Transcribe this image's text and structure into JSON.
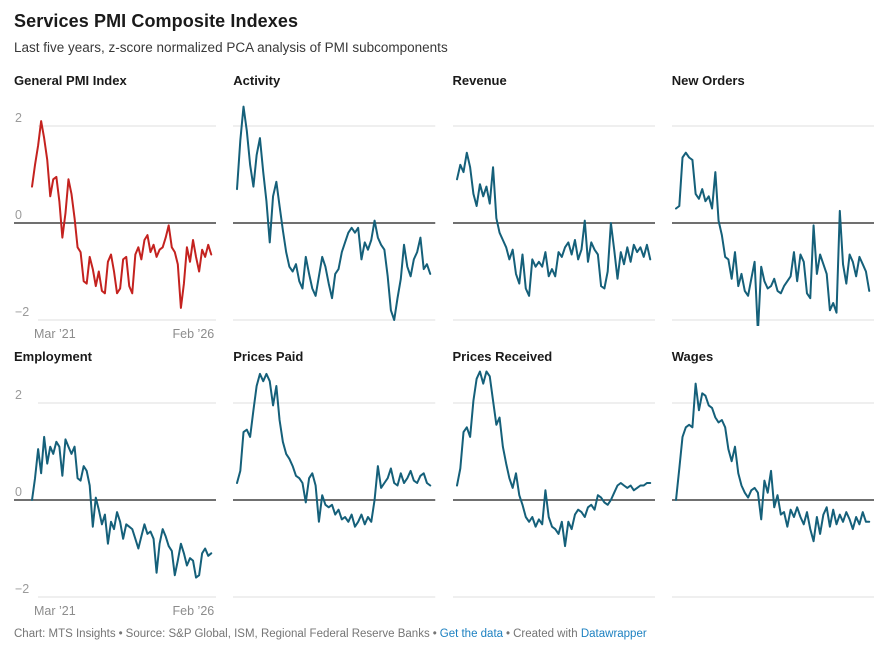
{
  "header": {
    "title": "Services PMI Composite Indexes",
    "subtitle": "Last five years, z-score normalized PCA analysis of PMI subcomponents"
  },
  "footer": {
    "chart_credit": "Chart: MTS Insights",
    "separator": "•",
    "source": "Source: S&P Global, ISM, Regional Federal Reserve Banks",
    "link_get_data": "Get the data",
    "created_with": "Created with",
    "link_datawrapper": "Datawrapper"
  },
  "colors": {
    "red_series": "#c4221f",
    "teal_series": "#15607a",
    "gridline": "#dfdfdf",
    "zero_line": "#1a1a1a",
    "tick_label": "#9b9b9b"
  },
  "chart_data": {
    "type": "line",
    "title": "Services PMI Composite Indexes",
    "subtitle": "Last five years, z-score normalized PCA analysis of PMI subcomponents",
    "x_unit": "month",
    "x_start": "Mar ’21",
    "x_end": "Feb ’26",
    "x_tick_labels": [
      "Mar ’21",
      "Feb ’26"
    ],
    "y_ticks": [
      2,
      0,
      -2
    ],
    "y_tick_labels": [
      "2",
      "0",
      "−2"
    ],
    "ylim": [
      -2.4,
      2.7
    ],
    "grid": "horizontal-only",
    "legend": "none",
    "panels": [
      {
        "title": "General PMI Index",
        "color": "#c4221f",
        "values": [
          0.75,
          1.2,
          1.6,
          2.1,
          1.75,
          1.3,
          0.55,
          0.9,
          0.95,
          0.45,
          -0.3,
          0.2,
          0.9,
          0.6,
          0.1,
          -0.5,
          -0.6,
          -1.2,
          -1.25,
          -0.7,
          -0.95,
          -1.3,
          -1.0,
          -1.4,
          -1.45,
          -0.8,
          -0.65,
          -1.0,
          -1.45,
          -1.35,
          -0.75,
          -0.7,
          -1.3,
          -1.45,
          -0.65,
          -0.5,
          -0.75,
          -0.35,
          -0.25,
          -0.6,
          -0.45,
          -0.7,
          -0.55,
          -0.5,
          -0.3,
          -0.05,
          -0.5,
          -0.6,
          -0.85,
          -1.75,
          -1.25,
          -0.5,
          -0.8,
          -0.35,
          -0.7,
          -1.0,
          -0.55,
          -0.7,
          -0.45,
          -0.65
        ]
      },
      {
        "title": "Activity",
        "color": "#15607a",
        "values": [
          0.7,
          1.7,
          2.4,
          1.9,
          1.2,
          0.75,
          1.4,
          1.75,
          1.05,
          0.45,
          -0.4,
          0.55,
          0.85,
          0.35,
          -0.15,
          -0.6,
          -0.9,
          -1.0,
          -0.85,
          -1.2,
          -1.35,
          -0.7,
          -1.05,
          -1.35,
          -1.5,
          -1.1,
          -0.7,
          -0.9,
          -1.25,
          -1.55,
          -1.05,
          -0.95,
          -0.6,
          -0.4,
          -0.2,
          -0.1,
          -0.2,
          -0.1,
          -0.75,
          -0.4,
          -0.55,
          -0.35,
          0.05,
          -0.3,
          -0.45,
          -0.55,
          -1.1,
          -1.8,
          -2.0,
          -1.55,
          -1.15,
          -0.45,
          -0.9,
          -1.1,
          -0.75,
          -0.6,
          -0.3,
          -0.95,
          -0.85,
          -1.05
        ]
      },
      {
        "title": "Revenue",
        "color": "#15607a",
        "values": [
          0.9,
          1.2,
          1.05,
          1.45,
          1.15,
          0.6,
          0.35,
          0.8,
          0.55,
          0.75,
          0.4,
          1.15,
          0.1,
          -0.2,
          -0.35,
          -0.5,
          -0.75,
          -0.55,
          -1.05,
          -1.25,
          -0.65,
          -1.35,
          -1.5,
          -0.75,
          -0.9,
          -0.8,
          -0.9,
          -0.6,
          -1.1,
          -0.95,
          -1.1,
          -0.6,
          -0.7,
          -0.5,
          -0.4,
          -0.65,
          -0.35,
          -0.75,
          -0.55,
          0.05,
          -0.8,
          -0.4,
          -0.55,
          -0.65,
          -1.3,
          -1.35,
          -1.0,
          0.0,
          -0.55,
          -1.15,
          -0.6,
          -0.85,
          -0.5,
          -0.8,
          -0.45,
          -0.6,
          -0.5,
          -0.7,
          -0.45,
          -0.75
        ]
      },
      {
        "title": "New Orders",
        "color": "#15607a",
        "values": [
          0.3,
          0.35,
          1.35,
          1.45,
          1.35,
          1.3,
          0.6,
          0.5,
          0.7,
          0.45,
          0.55,
          0.3,
          1.05,
          0.05,
          -0.25,
          -0.7,
          -0.75,
          -1.15,
          -0.6,
          -1.3,
          -1.05,
          -1.4,
          -1.5,
          -1.15,
          -0.8,
          -2.25,
          -0.9,
          -1.2,
          -1.35,
          -1.3,
          -1.15,
          -1.4,
          -1.45,
          -1.3,
          -1.2,
          -1.1,
          -0.6,
          -1.2,
          -0.65,
          -0.8,
          -1.45,
          -1.55,
          -0.05,
          -1.05,
          -0.65,
          -0.85,
          -1.05,
          -1.8,
          -1.65,
          -1.85,
          0.25,
          -0.85,
          -1.25,
          -0.65,
          -0.8,
          -1.1,
          -0.7,
          -0.85,
          -1.0,
          -1.4
        ]
      },
      {
        "title": "Employment",
        "color": "#15607a",
        "values": [
          0.0,
          0.45,
          1.05,
          0.55,
          1.3,
          0.75,
          1.1,
          0.95,
          1.2,
          1.1,
          0.5,
          1.25,
          1.1,
          0.95,
          1.1,
          0.45,
          0.4,
          0.7,
          0.6,
          0.3,
          -0.55,
          0.05,
          -0.2,
          -0.5,
          -0.3,
          -0.9,
          -0.45,
          -0.6,
          -0.25,
          -0.45,
          -0.8,
          -0.5,
          -0.55,
          -0.6,
          -0.8,
          -1.0,
          -0.75,
          -0.5,
          -0.7,
          -0.65,
          -0.8,
          -1.5,
          -0.9,
          -0.6,
          -0.75,
          -0.95,
          -1.05,
          -1.55,
          -1.25,
          -0.9,
          -1.1,
          -1.35,
          -1.2,
          -1.25,
          -1.6,
          -1.55,
          -1.1,
          -1.0,
          -1.15,
          -1.1
        ]
      },
      {
        "title": "Prices Paid",
        "color": "#15607a",
        "values": [
          0.35,
          0.6,
          1.4,
          1.45,
          1.3,
          1.85,
          2.35,
          2.6,
          2.45,
          2.6,
          2.45,
          1.95,
          2.35,
          1.65,
          1.2,
          0.95,
          0.85,
          0.7,
          0.5,
          0.45,
          0.35,
          -0.05,
          0.45,
          0.55,
          0.3,
          -0.45,
          0.1,
          -0.1,
          -0.15,
          -0.1,
          -0.3,
          -0.2,
          -0.4,
          -0.35,
          -0.45,
          -0.3,
          -0.55,
          -0.45,
          -0.3,
          -0.5,
          -0.35,
          -0.45,
          0.0,
          0.7,
          0.25,
          0.35,
          0.45,
          0.65,
          0.35,
          0.3,
          0.55,
          0.35,
          0.45,
          0.6,
          0.4,
          0.35,
          0.5,
          0.55,
          0.35,
          0.3
        ]
      },
      {
        "title": "Prices Received",
        "color": "#15607a",
        "values": [
          0.3,
          0.65,
          1.4,
          1.5,
          1.3,
          2.05,
          2.5,
          2.65,
          2.4,
          2.65,
          2.55,
          2.05,
          1.55,
          1.7,
          1.1,
          0.75,
          0.45,
          0.25,
          0.55,
          0.1,
          -0.1,
          -0.35,
          -0.45,
          -0.35,
          -0.55,
          -0.4,
          -0.5,
          0.2,
          -0.35,
          -0.55,
          -0.6,
          -0.7,
          -0.45,
          -0.95,
          -0.45,
          -0.6,
          -0.3,
          -0.2,
          -0.25,
          -0.35,
          -0.15,
          -0.1,
          -0.2,
          0.1,
          0.05,
          -0.05,
          -0.1,
          0.0,
          0.15,
          0.3,
          0.35,
          0.3,
          0.25,
          0.3,
          0.2,
          0.25,
          0.3,
          0.3,
          0.35,
          0.35
        ]
      },
      {
        "title": "Wages",
        "color": "#15607a",
        "values": [
          0.0,
          0.65,
          1.3,
          1.5,
          1.55,
          1.5,
          2.4,
          1.85,
          2.2,
          2.15,
          1.95,
          1.9,
          1.7,
          1.6,
          1.65,
          1.5,
          1.05,
          0.8,
          1.1,
          0.55,
          0.3,
          0.15,
          0.05,
          0.2,
          0.25,
          0.15,
          -0.4,
          0.4,
          0.15,
          0.6,
          -0.15,
          0.1,
          -0.3,
          -0.25,
          -0.55,
          -0.2,
          -0.35,
          -0.15,
          -0.35,
          -0.5,
          -0.25,
          -0.6,
          -0.85,
          -0.35,
          -0.7,
          -0.3,
          -0.15,
          -0.55,
          -0.2,
          -0.5,
          -0.3,
          -0.45,
          -0.25,
          -0.4,
          -0.6,
          -0.35,
          -0.5,
          -0.25,
          -0.45,
          -0.45
        ]
      }
    ]
  }
}
